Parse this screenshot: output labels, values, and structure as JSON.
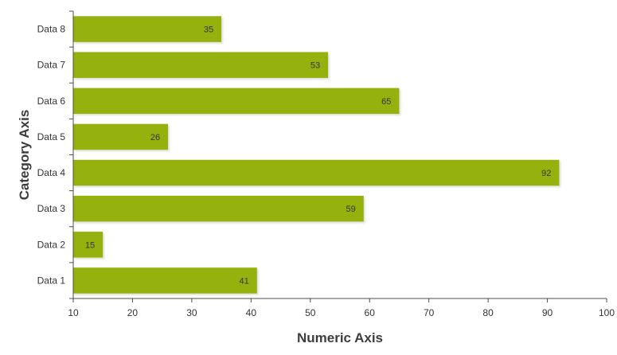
{
  "chart_data": {
    "type": "bar",
    "orientation": "horizontal",
    "categories": [
      "Data 1",
      "Data 2",
      "Data 3",
      "Data 4",
      "Data 5",
      "Data 6",
      "Data 7",
      "Data 8"
    ],
    "values": [
      41,
      15,
      59,
      92,
      26,
      65,
      53,
      35
    ],
    "xlabel": "Numeric Axis",
    "ylabel": "Category Axis",
    "xlim": [
      10,
      100
    ],
    "xticks": [
      10,
      20,
      30,
      40,
      50,
      60,
      70,
      80,
      90,
      100
    ],
    "bar_color": "#94b107",
    "grid": false,
    "legend": "none",
    "data_labels": "inside-end"
  }
}
